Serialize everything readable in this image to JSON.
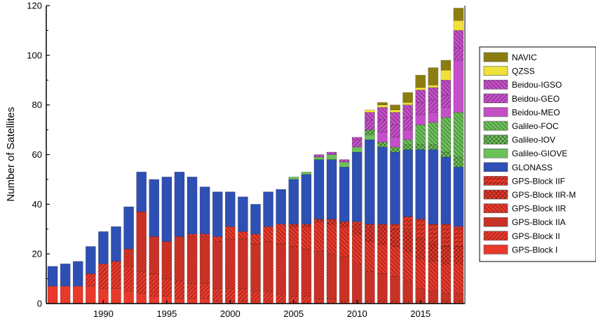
{
  "chart_data": {
    "type": "bar",
    "stacked": true,
    "title": "",
    "xlabel": "",
    "ylabel": "Number of Satellites",
    "ylim": [
      0,
      120
    ],
    "yticks": [
      0,
      20,
      40,
      60,
      80,
      100,
      120
    ],
    "xlim": [
      1985.5,
      2018.5
    ],
    "xticks": [
      1990,
      1995,
      2000,
      2005,
      2010,
      2015
    ],
    "grid": false,
    "legend_position": "right",
    "categories": [
      1986,
      1987,
      1988,
      1989,
      1990,
      1991,
      1992,
      1993,
      1994,
      1995,
      1996,
      1997,
      1998,
      1999,
      2000,
      2001,
      2002,
      2003,
      2004,
      2005,
      2006,
      2007,
      2008,
      2009,
      2010,
      2011,
      2012,
      2013,
      2014,
      2015,
      2016,
      2017,
      2018
    ],
    "series": [
      {
        "name": "GPS-Block I",
        "color": "#e8392b",
        "pattern": "solid",
        "values": [
          7,
          7,
          7,
          7,
          6,
          6,
          5,
          4,
          3,
          3,
          2,
          2,
          2,
          1,
          1,
          1,
          1,
          1,
          0,
          0,
          0,
          0,
          0,
          0,
          0,
          0,
          0,
          0,
          0,
          0,
          0,
          0,
          0
        ]
      },
      {
        "name": "GPS-Block II",
        "color": "#e8392b",
        "pattern": "hatch-right",
        "values": [
          0,
          0,
          0,
          5,
          10,
          11,
          10,
          9,
          9,
          7,
          7,
          6,
          6,
          5,
          5,
          5,
          4,
          4,
          4,
          3,
          3,
          2,
          2,
          1,
          1,
          1,
          1,
          1,
          1,
          1,
          1,
          1,
          1
        ]
      },
      {
        "name": "GPS-Block IIA",
        "color": "#e8392b",
        "pattern": "hatch-dense",
        "values": [
          0,
          0,
          0,
          0,
          0,
          0,
          7,
          24,
          15,
          15,
          18,
          19,
          19,
          19,
          20,
          20,
          19,
          20,
          20,
          20,
          19,
          19,
          18,
          18,
          15,
          12,
          11,
          10,
          8,
          5,
          4,
          3,
          3
        ]
      },
      {
        "name": "GPS-Block IIR",
        "color": "#e8392b",
        "pattern": "hatch-left",
        "values": [
          0,
          0,
          0,
          0,
          0,
          0,
          0,
          0,
          0,
          0,
          0,
          1,
          1,
          2,
          5,
          3,
          4,
          6,
          8,
          8,
          9,
          12,
          12,
          12,
          12,
          12,
          12,
          12,
          12,
          12,
          12,
          12,
          12
        ]
      },
      {
        "name": "GPS-Block IIR-M",
        "color": "#e8392b",
        "pattern": "crosshatch",
        "values": [
          0,
          0,
          0,
          0,
          0,
          0,
          0,
          0,
          0,
          0,
          0,
          0,
          0,
          0,
          0,
          0,
          0,
          0,
          0,
          1,
          1,
          1,
          2,
          2,
          4,
          6,
          7,
          7,
          8,
          8,
          7,
          7,
          7
        ]
      },
      {
        "name": "GPS-Block IIF",
        "color": "#e8392b",
        "pattern": "hatch-horiz",
        "values": [
          0,
          0,
          0,
          0,
          0,
          0,
          0,
          0,
          0,
          0,
          0,
          0,
          0,
          0,
          0,
          0,
          0,
          0,
          0,
          0,
          0,
          0,
          0,
          0,
          1,
          1,
          1,
          2,
          6,
          8,
          8,
          9,
          8
        ]
      },
      {
        "name": "GLONASS",
        "color": "#2e4fb3",
        "pattern": "solid",
        "values": [
          8,
          9,
          10,
          11,
          13,
          14,
          17,
          16,
          23,
          26,
          26,
          23,
          19,
          18,
          14,
          14,
          12,
          14,
          14,
          18,
          20,
          24,
          24,
          22,
          28,
          34,
          31,
          29,
          27,
          28,
          30,
          27,
          24
        ]
      },
      {
        "name": "Galileo-GIOVE",
        "color": "#6dc05a",
        "pattern": "solid",
        "values": [
          0,
          0,
          0,
          0,
          0,
          0,
          0,
          0,
          0,
          0,
          0,
          0,
          0,
          0,
          0,
          0,
          0,
          0,
          0,
          1,
          1,
          1,
          2,
          2,
          2,
          2,
          0,
          0,
          0,
          0,
          0,
          0,
          0
        ]
      },
      {
        "name": "Galileo-IOV",
        "color": "#6dc05a",
        "pattern": "crosshatch",
        "values": [
          0,
          0,
          0,
          0,
          0,
          0,
          0,
          0,
          0,
          0,
          0,
          0,
          0,
          0,
          0,
          0,
          0,
          0,
          0,
          0,
          0,
          0,
          0,
          0,
          0,
          2,
          2,
          2,
          2,
          2,
          2,
          2,
          4
        ]
      },
      {
        "name": "Galileo-FOC",
        "color": "#6dc05a",
        "pattern": "hatch-left",
        "values": [
          0,
          0,
          0,
          0,
          0,
          0,
          0,
          0,
          0,
          0,
          0,
          0,
          0,
          0,
          0,
          0,
          0,
          0,
          0,
          0,
          0,
          0,
          0,
          0,
          0,
          0,
          0,
          0,
          2,
          8,
          9,
          14,
          18
        ]
      },
      {
        "name": "Beidou-MEO",
        "color": "#c44fc8",
        "pattern": "solid",
        "values": [
          0,
          0,
          0,
          0,
          0,
          0,
          0,
          0,
          0,
          0,
          0,
          0,
          0,
          0,
          0,
          0,
          0,
          0,
          0,
          0,
          0,
          0,
          0,
          0,
          0,
          0,
          4,
          4,
          4,
          4,
          4,
          4,
          21
        ]
      },
      {
        "name": "Beidou-GEO",
        "color": "#c44fc8",
        "pattern": "hatch-right",
        "values": [
          0,
          0,
          0,
          0,
          0,
          0,
          0,
          0,
          0,
          0,
          0,
          0,
          0,
          0,
          0,
          0,
          0,
          0,
          0,
          0,
          0,
          1,
          1,
          1,
          3,
          4,
          5,
          5,
          5,
          5,
          5,
          5,
          5
        ]
      },
      {
        "name": "Beidou-IGSO",
        "color": "#c44fc8",
        "pattern": "hatch-left",
        "values": [
          0,
          0,
          0,
          0,
          0,
          0,
          0,
          0,
          0,
          0,
          0,
          0,
          0,
          0,
          0,
          0,
          0,
          0,
          0,
          0,
          0,
          0,
          0,
          0,
          1,
          3,
          5,
          5,
          5,
          5,
          5,
          6,
          7
        ]
      },
      {
        "name": "QZSS",
        "color": "#f0e03a",
        "pattern": "solid",
        "values": [
          0,
          0,
          0,
          0,
          0,
          0,
          0,
          0,
          0,
          0,
          0,
          0,
          0,
          0,
          0,
          0,
          0,
          0,
          0,
          0,
          0,
          0,
          0,
          0,
          0,
          1,
          1,
          1,
          1,
          1,
          1,
          4,
          4
        ]
      },
      {
        "name": "NAVIC",
        "color": "#8c7d10",
        "pattern": "solid",
        "values": [
          0,
          0,
          0,
          0,
          0,
          0,
          0,
          0,
          0,
          0,
          0,
          0,
          0,
          0,
          0,
          0,
          0,
          0,
          0,
          0,
          0,
          0,
          0,
          0,
          0,
          0,
          1,
          2,
          4,
          5,
          7,
          4,
          5
        ]
      }
    ],
    "legend_order": [
      "NAVIC",
      "QZSS",
      "Beidou-IGSO",
      "Beidou-GEO",
      "Beidou-MEO",
      "Galileo-FOC",
      "Galileo-IOV",
      "Galileo-GIOVE",
      "GLONASS",
      "GPS-Block IIF",
      "GPS-Block IIR-M",
      "GPS-Block IIR",
      "GPS-Block IIA",
      "GPS-Block II",
      "GPS-Block I"
    ]
  }
}
